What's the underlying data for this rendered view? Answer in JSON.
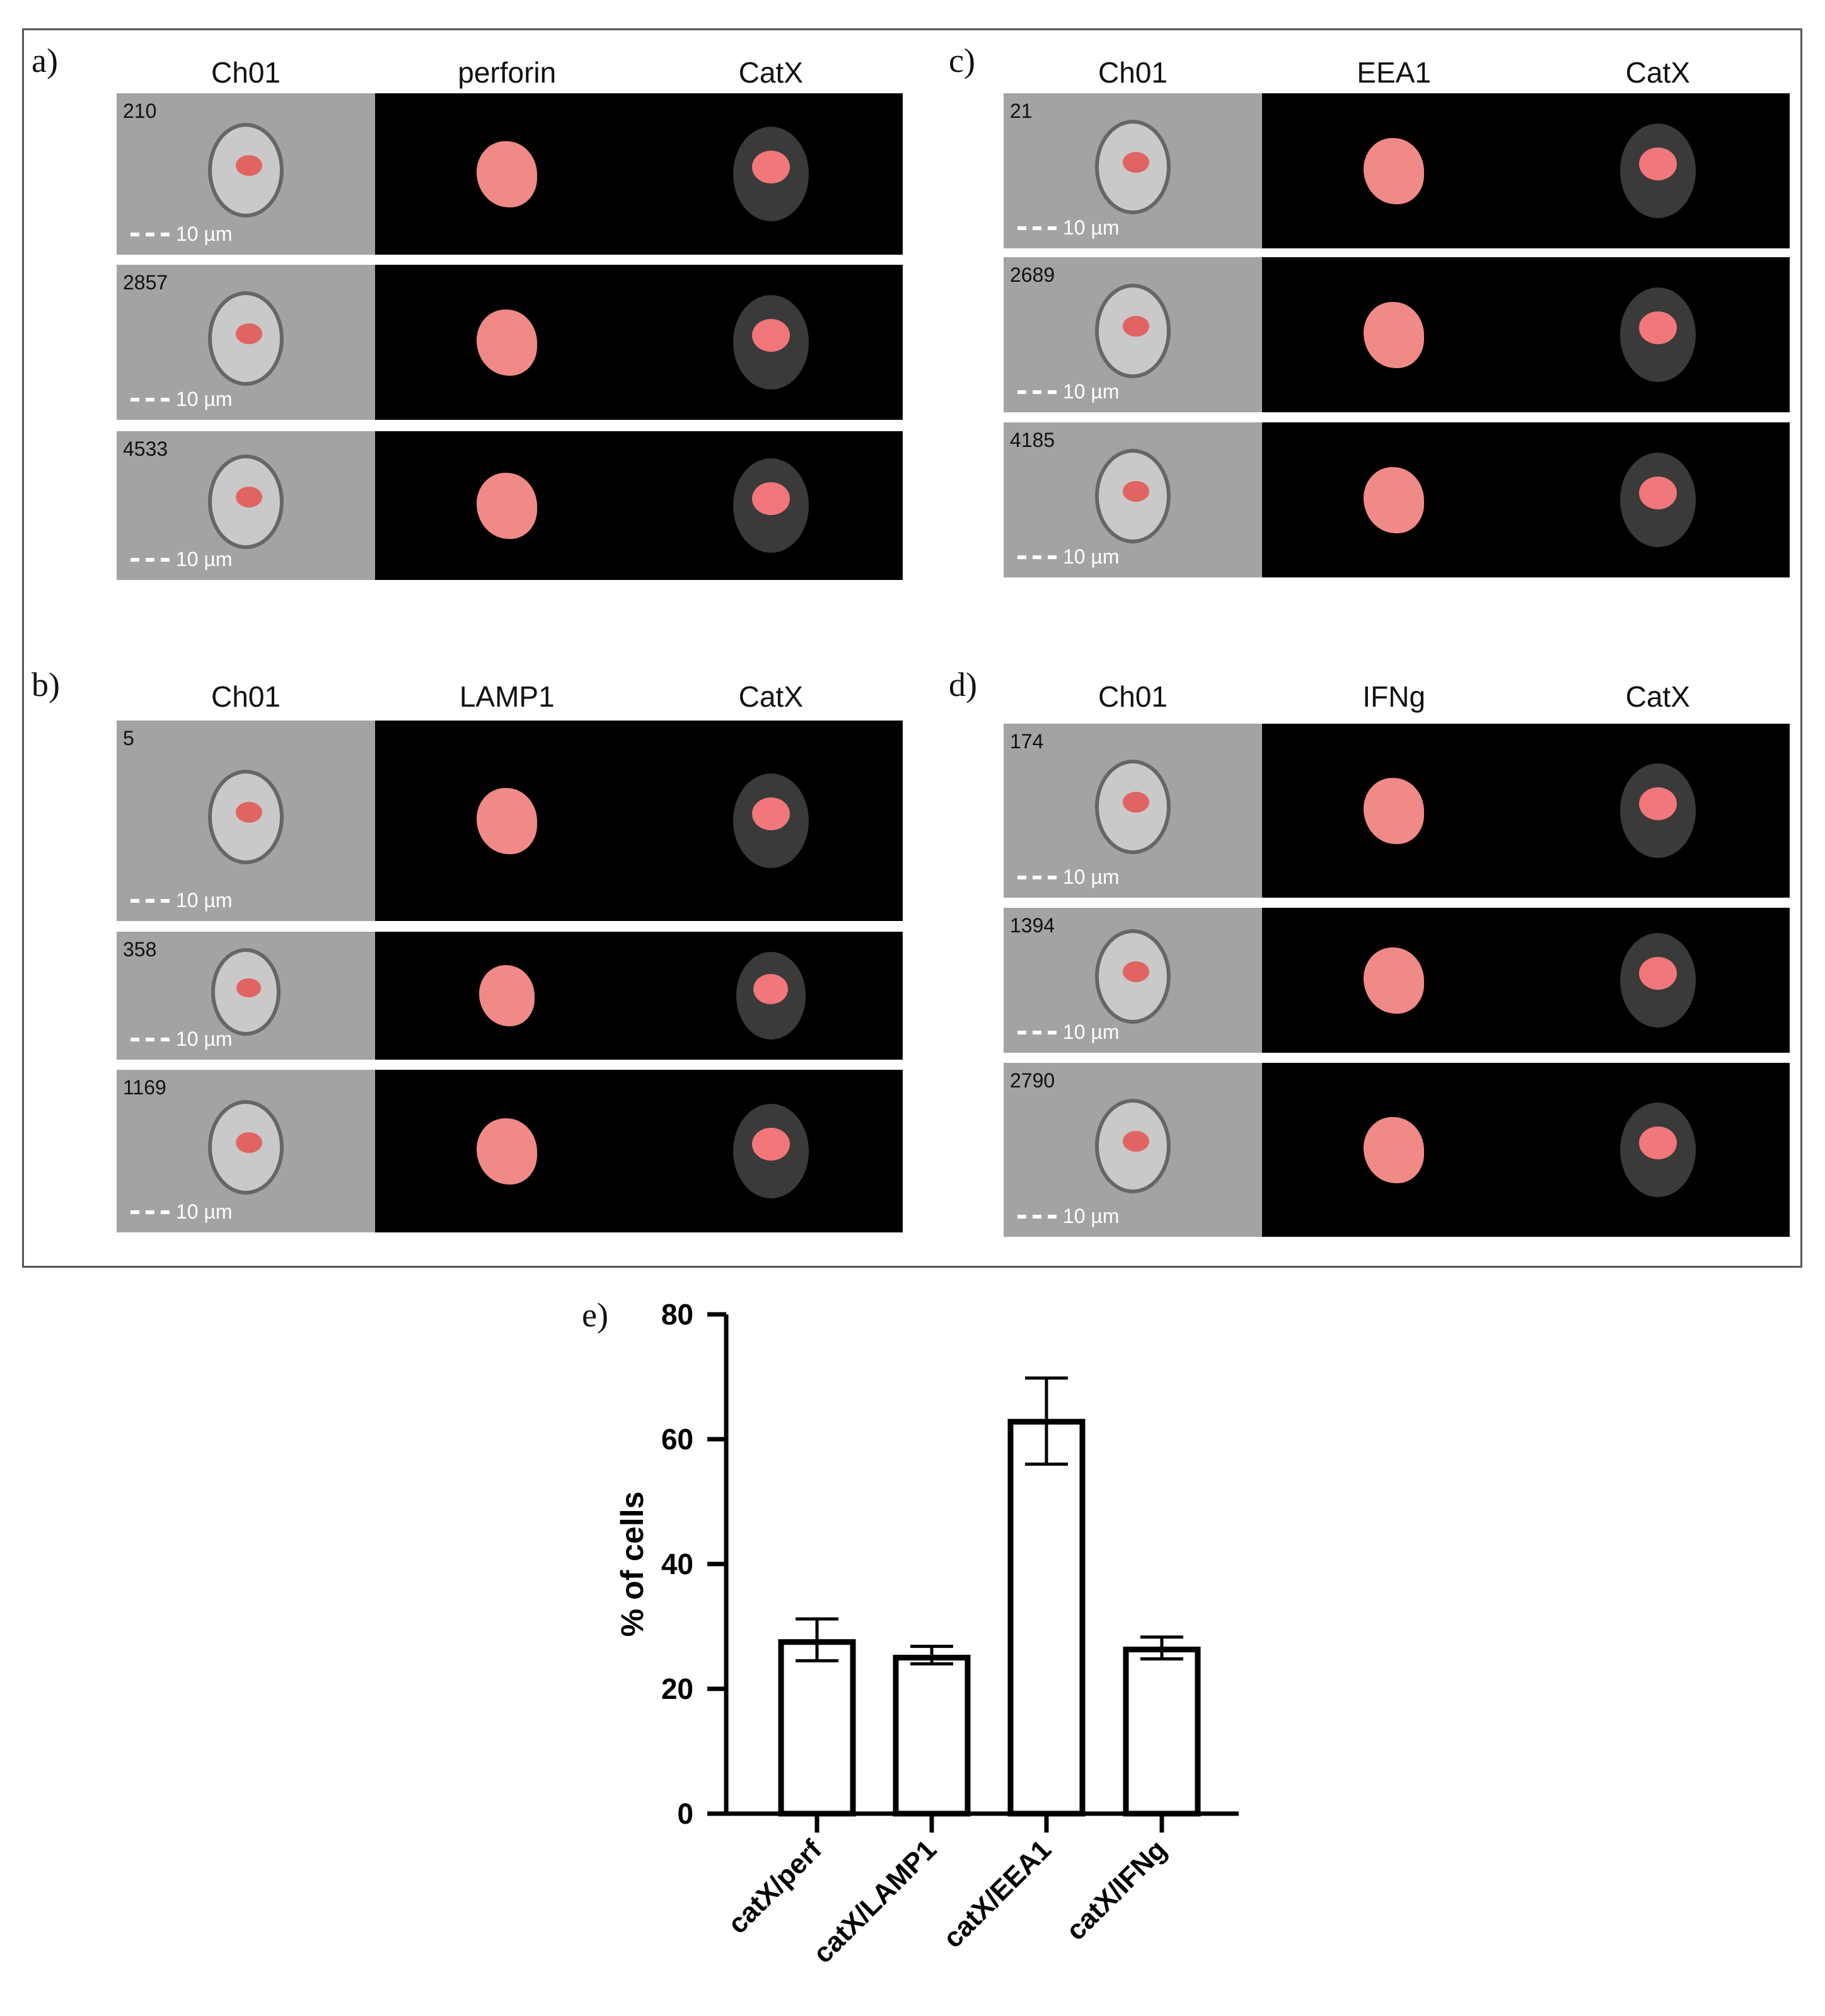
{
  "figure": {
    "panels": [
      {
        "letter": "a)",
        "columns": [
          "Ch01",
          "perforin",
          "CatX"
        ],
        "events": [
          "210",
          "2857",
          "4533"
        ],
        "scale": "10 µm"
      },
      {
        "letter": "b)",
        "columns": [
          "Ch01",
          "LAMP1",
          "CatX"
        ],
        "events": [
          "5",
          "358",
          "1169"
        ],
        "scale": "10 µm"
      },
      {
        "letter": "c)",
        "columns": [
          "Ch01",
          "EEA1",
          "CatX"
        ],
        "events": [
          "21",
          "2689",
          "4185"
        ],
        "scale": "10 µm"
      },
      {
        "letter": "d)",
        "columns": [
          "Ch01",
          "IFNg",
          "CatX"
        ],
        "events": [
          "174",
          "1394",
          "2790"
        ],
        "scale": "10 µm"
      }
    ],
    "colors": {
      "overlay": "#e4524f",
      "fluor_bg": "#000000",
      "brightfield_bg": "#a3a3a3"
    }
  },
  "chart_data": {
    "type": "bar",
    "panel_letter": "e)",
    "categories": [
      "catX/perf",
      "catX/LAMP1",
      "catX/EEA1",
      "catX/IFNg"
    ],
    "values": [
      27.5,
      25,
      62.8,
      26.3
    ],
    "error_low": [
      24.5,
      24,
      56,
      24.8
    ],
    "error_high": [
      31.2,
      26.8,
      69.8,
      28.3
    ],
    "ylabel": "% of cells",
    "ylim": [
      0,
      80
    ],
    "yticks": [
      0,
      20,
      40,
      60,
      80
    ],
    "grid": false,
    "bar_fill": "#ffffff",
    "bar_stroke": "#000000"
  }
}
